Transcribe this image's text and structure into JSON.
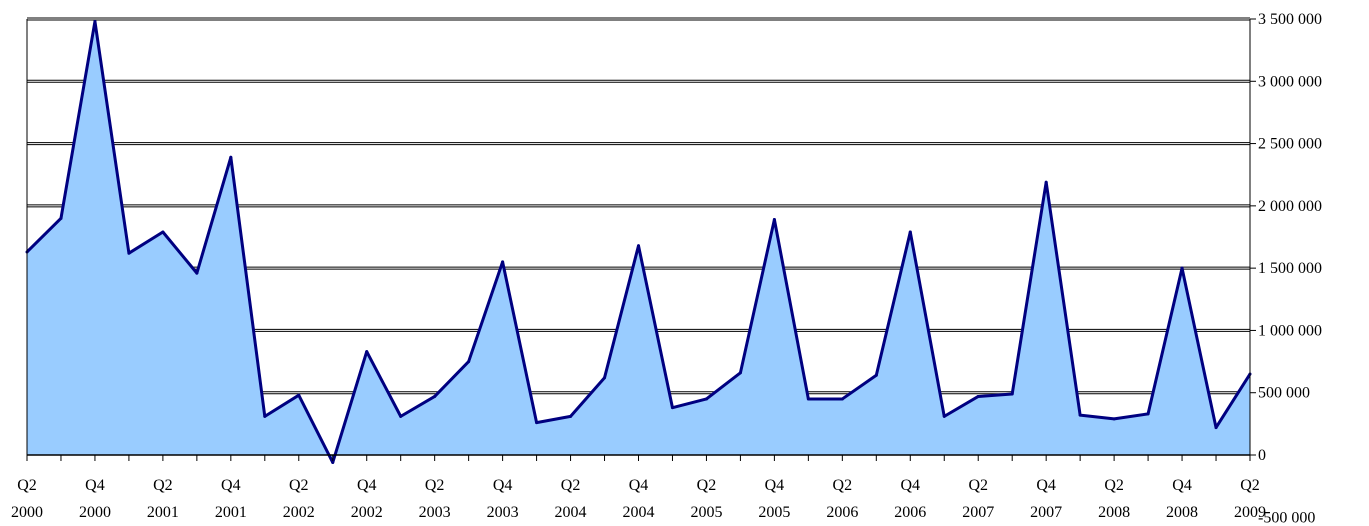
{
  "chart_data": {
    "type": "area",
    "title": "",
    "xlabel": "",
    "ylabel": "",
    "ylim": [
      -500000,
      3500000
    ],
    "ytick_values": [
      3500000,
      3000000,
      2500000,
      2000000,
      1500000,
      1000000,
      500000,
      0,
      -500000
    ],
    "ytick_labels": [
      "3 500 000",
      "3 000 000",
      "2 500 000",
      "2 000 000",
      "1 500 000",
      "1 000 000",
      "500 000",
      "0",
      "-500 000"
    ],
    "y_axis_side": "right",
    "grid": true,
    "legend": "none",
    "x_tick_labels": [
      {
        "q": "Q2",
        "y": "2000"
      },
      {
        "q": "Q4",
        "y": "2000"
      },
      {
        "q": "Q2",
        "y": "2001"
      },
      {
        "q": "Q4",
        "y": "2001"
      },
      {
        "q": "Q2",
        "y": "2002"
      },
      {
        "q": "Q4",
        "y": "2002"
      },
      {
        "q": "Q2",
        "y": "2003"
      },
      {
        "q": "Q4",
        "y": "2003"
      },
      {
        "q": "Q2",
        "y": "2004"
      },
      {
        "q": "Q4",
        "y": "2004"
      },
      {
        "q": "Q2",
        "y": "2005"
      },
      {
        "q": "Q4",
        "y": "2005"
      },
      {
        "q": "Q2",
        "y": "2006"
      },
      {
        "q": "Q4",
        "y": "2006"
      },
      {
        "q": "Q2",
        "y": "2007"
      },
      {
        "q": "Q4",
        "y": "2007"
      },
      {
        "q": "Q2",
        "y": "2008"
      },
      {
        "q": "Q4",
        "y": "2008"
      },
      {
        "q": "Q2",
        "y": "2009"
      }
    ],
    "series": [
      {
        "values": [
          1630000,
          1900000,
          3480000,
          1620000,
          1790000,
          1460000,
          2390000,
          310000,
          480000,
          -60000,
          830000,
          310000,
          470000,
          750000,
          1550000,
          260000,
          310000,
          620000,
          1680000,
          380000,
          450000,
          660000,
          1890000,
          450000,
          450000,
          640000,
          1790000,
          310000,
          470000,
          490000,
          2190000,
          320000,
          290000,
          330000,
          1500000,
          220000,
          650000
        ]
      }
    ],
    "colors": {
      "fill": "#99ccff",
      "line": "#000080",
      "grid": "#000000"
    }
  }
}
